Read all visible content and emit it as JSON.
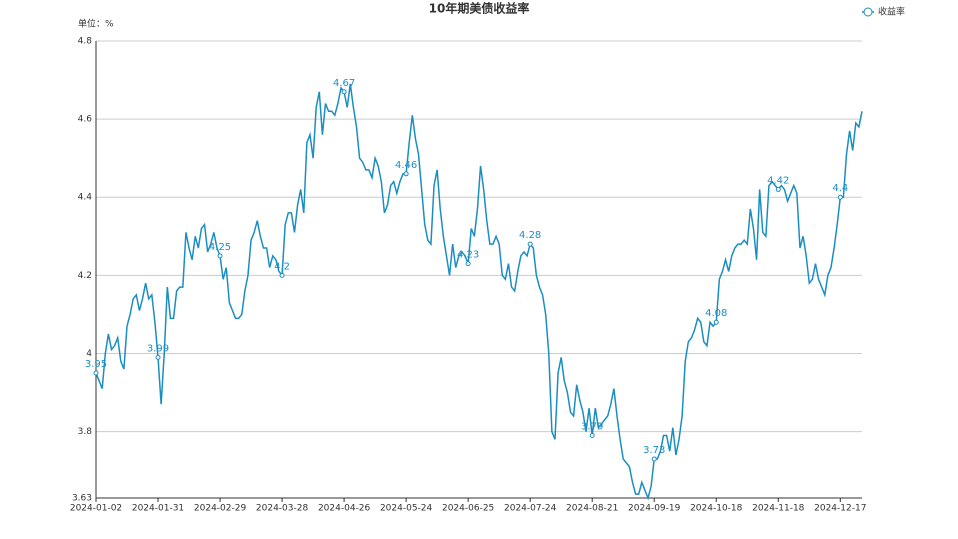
{
  "chart_data": {
    "type": "line",
    "title": "10年期美债收益率",
    "y_label": "单位：%",
    "categories": [
      "2024-01-02",
      null,
      null,
      null,
      null,
      null,
      null,
      null,
      null,
      null,
      null,
      null,
      null,
      null,
      null,
      null,
      null,
      null,
      null,
      null,
      "2024-01-31",
      null,
      null,
      null,
      null,
      null,
      null,
      null,
      null,
      null,
      null,
      null,
      null,
      null,
      null,
      null,
      null,
      null,
      null,
      null,
      "2024-02-29",
      null,
      null,
      null,
      null,
      null,
      null,
      null,
      null,
      null,
      null,
      null,
      null,
      null,
      null,
      null,
      null,
      null,
      null,
      null,
      "2024-03-28",
      null,
      null,
      null,
      null,
      null,
      null,
      null,
      null,
      null,
      null,
      null,
      null,
      null,
      null,
      null,
      null,
      null,
      null,
      null,
      "2024-04-26",
      null,
      null,
      null,
      null,
      null,
      null,
      null,
      null,
      null,
      null,
      null,
      null,
      null,
      null,
      null,
      null,
      null,
      null,
      null,
      "2024-05-24",
      null,
      null,
      null,
      null,
      null,
      null,
      null,
      null,
      null,
      null,
      null,
      null,
      null,
      null,
      null,
      null,
      null,
      null,
      null,
      "2024-06-25",
      null,
      null,
      null,
      null,
      null,
      null,
      null,
      null,
      null,
      null,
      null,
      null,
      null,
      null,
      null,
      null,
      null,
      null,
      null,
      "2024-07-24",
      null,
      null,
      null,
      null,
      null,
      null,
      null,
      null,
      null,
      null,
      null,
      null,
      null,
      null,
      null,
      null,
      null,
      null,
      null,
      "2024-08-21",
      null,
      null,
      null,
      null,
      null,
      null,
      null,
      null,
      null,
      null,
      null,
      null,
      null,
      null,
      null,
      null,
      null,
      null,
      null,
      "2024-09-19",
      null,
      null,
      null,
      null,
      null,
      null,
      null,
      null,
      null,
      null,
      null,
      null,
      null,
      null,
      null,
      null,
      null,
      null,
      null,
      "2024-10-18",
      null,
      null,
      null,
      null,
      null,
      null,
      null,
      null,
      null,
      null,
      null,
      null,
      null,
      null,
      null,
      null,
      null,
      null,
      null,
      "2024-11-18",
      null,
      null,
      null,
      null,
      null,
      null,
      null,
      null,
      null,
      null,
      null,
      null,
      null,
      null,
      null,
      null,
      null,
      null,
      null,
      "2024-12-17",
      null,
      null,
      null,
      null,
      null,
      null,
      null
    ],
    "series": [
      {
        "name": "收益率",
        "color": "#1a8ec2",
        "values": [
          3.95,
          3.93,
          3.91,
          4.0,
          4.05,
          4.01,
          4.02,
          4.04,
          3.98,
          3.96,
          4.07,
          4.1,
          4.14,
          4.15,
          4.11,
          4.14,
          4.18,
          4.14,
          4.15,
          4.08,
          3.99,
          3.87,
          4.0,
          4.17,
          4.09,
          4.09,
          4.16,
          4.17,
          4.17,
          4.31,
          4.27,
          4.24,
          4.3,
          4.27,
          4.32,
          4.33,
          4.26,
          4.28,
          4.31,
          4.27,
          4.25,
          4.19,
          4.22,
          4.13,
          4.11,
          4.09,
          4.09,
          4.1,
          4.16,
          4.2,
          4.29,
          4.31,
          4.34,
          4.3,
          4.27,
          4.27,
          4.22,
          4.25,
          4.24,
          4.21,
          4.2,
          4.33,
          4.36,
          4.36,
          4.31,
          4.38,
          4.42,
          4.36,
          4.54,
          4.56,
          4.5,
          4.63,
          4.67,
          4.56,
          4.64,
          4.62,
          4.62,
          4.61,
          4.64,
          4.68,
          4.67,
          4.63,
          4.69,
          4.63,
          4.58,
          4.5,
          4.49,
          4.47,
          4.47,
          4.45,
          4.5,
          4.48,
          4.44,
          4.36,
          4.38,
          4.43,
          4.44,
          4.41,
          4.44,
          4.46,
          4.46,
          4.54,
          4.61,
          4.55,
          4.51,
          4.42,
          4.33,
          4.29,
          4.28,
          4.43,
          4.47,
          4.37,
          4.3,
          4.25,
          4.2,
          4.28,
          4.22,
          4.25,
          4.26,
          4.25,
          4.23,
          4.32,
          4.3,
          4.37,
          4.48,
          4.42,
          4.34,
          4.28,
          4.28,
          4.3,
          4.28,
          4.2,
          4.19,
          4.23,
          4.17,
          4.16,
          4.21,
          4.25,
          4.26,
          4.25,
          4.28,
          4.27,
          4.2,
          4.17,
          4.15,
          4.1,
          4.0,
          3.8,
          3.78,
          3.95,
          3.99,
          3.93,
          3.9,
          3.85,
          3.84,
          3.92,
          3.88,
          3.85,
          3.8,
          3.86,
          3.79,
          3.86,
          3.81,
          3.82,
          3.83,
          3.84,
          3.87,
          3.91,
          3.84,
          3.78,
          3.73,
          3.72,
          3.71,
          3.67,
          3.64,
          3.64,
          3.67,
          3.65,
          3.63,
          3.66,
          3.73,
          3.73,
          3.75,
          3.79,
          3.79,
          3.75,
          3.81,
          3.74,
          3.78,
          3.84,
          3.98,
          4.03,
          4.04,
          4.06,
          4.09,
          4.08,
          4.03,
          4.02,
          4.08,
          4.07,
          4.08,
          4.19,
          4.21,
          4.24,
          4.21,
          4.25,
          4.27,
          4.28,
          4.28,
          4.29,
          4.28,
          4.37,
          4.32,
          4.24,
          4.42,
          4.31,
          4.3,
          4.43,
          4.44,
          4.43,
          4.42,
          4.43,
          4.42,
          4.39,
          4.41,
          4.43,
          4.41,
          4.27,
          4.3,
          4.25,
          4.18,
          4.19,
          4.23,
          4.19,
          4.17,
          4.15,
          4.2,
          4.22,
          4.27,
          4.33,
          4.4,
          4.4,
          4.51,
          4.57,
          4.52,
          4.59,
          4.58,
          4.62
        ]
      }
    ],
    "ylim": [
      3.63,
      4.8
    ],
    "yticks": [
      3.63,
      3.8,
      4,
      4.2,
      4.4,
      4.6,
      4.8
    ],
    "grid": true,
    "legend": "top-right"
  }
}
